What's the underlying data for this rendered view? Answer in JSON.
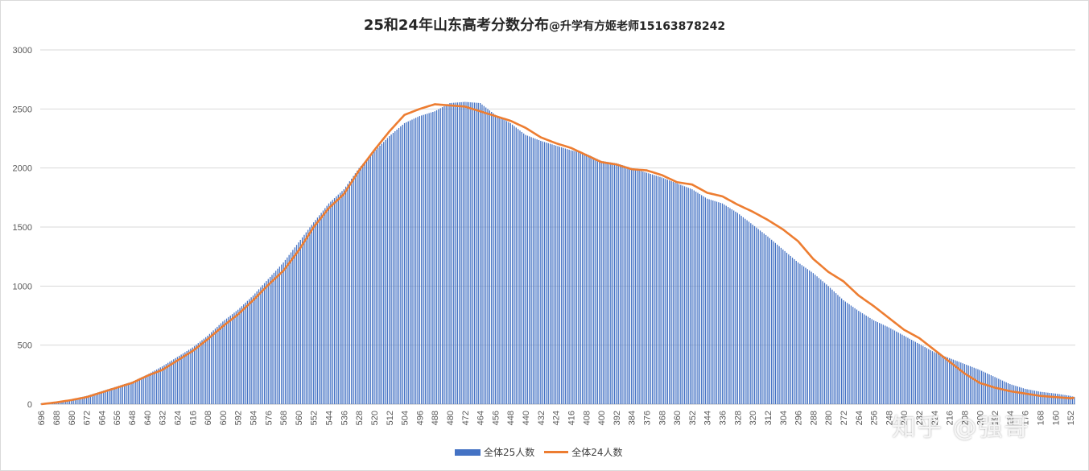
{
  "title": "25和24年山东高考分数分布",
  "title_suffix": "@升学有方姬老师15163878242",
  "watermark": "知乎 @强哥",
  "colors": {
    "series25": "#4472c4",
    "series24": "#ed7d31",
    "grid": "#d9d9d9"
  },
  "legend": {
    "bar_label": "全体25人数",
    "line_label": "全体24人数"
  },
  "chart_data": {
    "type": "bar",
    "title": "25和24年山东高考分数分布@升学有方姬老师15163878242",
    "xlabel": "",
    "ylabel": "",
    "ylim": [
      0,
      3000
    ],
    "yticks": [
      0,
      500,
      1000,
      1500,
      2000,
      2500,
      3000
    ],
    "x_start": 696,
    "x_end": 150,
    "x_step": -1,
    "xtick_labels": [
      "696",
      "688",
      "680",
      "672",
      "664",
      "656",
      "648",
      "640",
      "632",
      "624",
      "616",
      "608",
      "600",
      "592",
      "584",
      "576",
      "568",
      "560",
      "552",
      "544",
      "536",
      "528",
      "520",
      "512",
      "504",
      "496",
      "488",
      "480",
      "472",
      "464",
      "456",
      "448",
      "440",
      "432",
      "424",
      "416",
      "408",
      "400",
      "392",
      "384",
      "376",
      "368",
      "360",
      "352",
      "344",
      "336",
      "328",
      "320",
      "312",
      "304",
      "296",
      "288",
      "280",
      "272",
      "264",
      "256",
      "248",
      "240",
      "232",
      "224",
      "216",
      "208",
      "200",
      "192",
      "184",
      "176",
      "168",
      "160",
      "152"
    ],
    "grid": true,
    "legend_position": "bottom",
    "series": [
      {
        "name": "全体25人数",
        "type": "bar",
        "keypoints": [
          [
            696,
            5
          ],
          [
            688,
            20
          ],
          [
            680,
            40
          ],
          [
            672,
            70
          ],
          [
            664,
            110
          ],
          [
            656,
            150
          ],
          [
            648,
            190
          ],
          [
            640,
            250
          ],
          [
            632,
            320
          ],
          [
            624,
            400
          ],
          [
            616,
            480
          ],
          [
            608,
            580
          ],
          [
            600,
            700
          ],
          [
            592,
            800
          ],
          [
            584,
            920
          ],
          [
            576,
            1060
          ],
          [
            568,
            1200
          ],
          [
            560,
            1370
          ],
          [
            552,
            1540
          ],
          [
            544,
            1700
          ],
          [
            536,
            1820
          ],
          [
            528,
            2000
          ],
          [
            520,
            2140
          ],
          [
            512,
            2270
          ],
          [
            504,
            2380
          ],
          [
            496,
            2440
          ],
          [
            488,
            2480
          ],
          [
            480,
            2550
          ],
          [
            472,
            2560
          ],
          [
            464,
            2550
          ],
          [
            456,
            2450
          ],
          [
            448,
            2380
          ],
          [
            440,
            2280
          ],
          [
            432,
            2230
          ],
          [
            424,
            2190
          ],
          [
            416,
            2150
          ],
          [
            408,
            2120
          ],
          [
            400,
            2060
          ],
          [
            392,
            2040
          ],
          [
            384,
            2000
          ],
          [
            376,
            1960
          ],
          [
            368,
            1920
          ],
          [
            360,
            1870
          ],
          [
            352,
            1820
          ],
          [
            344,
            1740
          ],
          [
            336,
            1700
          ],
          [
            328,
            1620
          ],
          [
            320,
            1520
          ],
          [
            312,
            1420
          ],
          [
            304,
            1310
          ],
          [
            296,
            1200
          ],
          [
            288,
            1110
          ],
          [
            280,
            1000
          ],
          [
            272,
            880
          ],
          [
            264,
            790
          ],
          [
            256,
            710
          ],
          [
            248,
            650
          ],
          [
            240,
            580
          ],
          [
            232,
            510
          ],
          [
            224,
            440
          ],
          [
            216,
            390
          ],
          [
            208,
            340
          ],
          [
            200,
            290
          ],
          [
            192,
            230
          ],
          [
            184,
            170
          ],
          [
            176,
            130
          ],
          [
            168,
            105
          ],
          [
            160,
            90
          ],
          [
            152,
            70
          ],
          [
            150,
            60
          ]
        ]
      },
      {
        "name": "全体24人数",
        "type": "line",
        "keypoints": [
          [
            696,
            0
          ],
          [
            688,
            15
          ],
          [
            680,
            35
          ],
          [
            672,
            60
          ],
          [
            664,
            100
          ],
          [
            656,
            140
          ],
          [
            648,
            180
          ],
          [
            640,
            240
          ],
          [
            632,
            290
          ],
          [
            624,
            370
          ],
          [
            616,
            450
          ],
          [
            608,
            550
          ],
          [
            600,
            660
          ],
          [
            592,
            760
          ],
          [
            584,
            880
          ],
          [
            576,
            1010
          ],
          [
            568,
            1130
          ],
          [
            560,
            1300
          ],
          [
            552,
            1500
          ],
          [
            544,
            1660
          ],
          [
            536,
            1780
          ],
          [
            528,
            1980
          ],
          [
            520,
            2150
          ],
          [
            512,
            2310
          ],
          [
            504,
            2450
          ],
          [
            496,
            2500
          ],
          [
            488,
            2540
          ],
          [
            480,
            2530
          ],
          [
            472,
            2520
          ],
          [
            464,
            2480
          ],
          [
            456,
            2440
          ],
          [
            448,
            2400
          ],
          [
            440,
            2340
          ],
          [
            432,
            2260
          ],
          [
            424,
            2210
          ],
          [
            416,
            2170
          ],
          [
            408,
            2110
          ],
          [
            400,
            2050
          ],
          [
            392,
            2030
          ],
          [
            384,
            1990
          ],
          [
            376,
            1980
          ],
          [
            368,
            1940
          ],
          [
            360,
            1880
          ],
          [
            352,
            1860
          ],
          [
            344,
            1790
          ],
          [
            336,
            1760
          ],
          [
            328,
            1690
          ],
          [
            320,
            1630
          ],
          [
            312,
            1560
          ],
          [
            304,
            1480
          ],
          [
            296,
            1380
          ],
          [
            288,
            1230
          ],
          [
            280,
            1120
          ],
          [
            272,
            1040
          ],
          [
            264,
            920
          ],
          [
            256,
            830
          ],
          [
            248,
            730
          ],
          [
            240,
            630
          ],
          [
            232,
            560
          ],
          [
            224,
            460
          ],
          [
            216,
            360
          ],
          [
            208,
            260
          ],
          [
            200,
            180
          ],
          [
            192,
            140
          ],
          [
            184,
            110
          ],
          [
            176,
            90
          ],
          [
            168,
            70
          ],
          [
            160,
            60
          ],
          [
            152,
            50
          ],
          [
            150,
            55
          ]
        ]
      }
    ]
  }
}
